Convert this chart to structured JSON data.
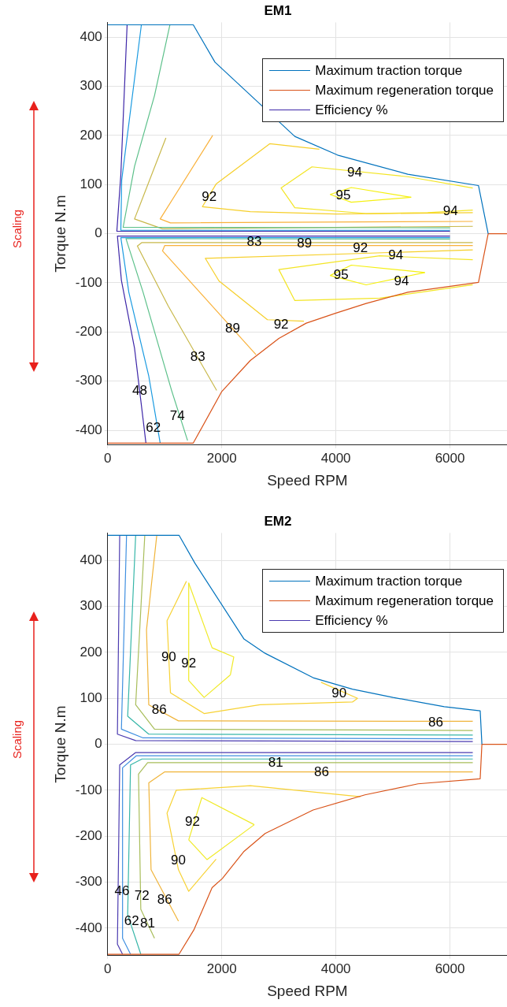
{
  "chart_data": [
    {
      "type": "line",
      "title": "EM1",
      "xlabel": "Speed RPM",
      "ylabel": "Torque N.m",
      "xlim": [
        0,
        7000
      ],
      "ylim": [
        -430,
        430
      ],
      "xticks": [
        0,
        2000,
        4000,
        6000
      ],
      "yticks": [
        -400,
        -300,
        -200,
        -100,
        0,
        100,
        200,
        300,
        400
      ],
      "grid": true,
      "legend": "top right",
      "marker": "none",
      "series": [
        {
          "name": "Maximum traction torque",
          "color": "#0072bd",
          "x": [
            0,
            1500,
            1880,
            3280,
            4030,
            5260,
            6500,
            6670
          ],
          "values": [
            425,
            425,
            349,
            198,
            160,
            121,
            98,
            0
          ]
        },
        {
          "name": "Maximum regeneration torque",
          "color": "#d95319",
          "x": [
            0,
            1500,
            2000,
            2500,
            3000,
            3480,
            3990,
            4530,
            5260,
            6500,
            6670,
            7000
          ],
          "values": [
            -426,
            -426,
            -321,
            -258,
            -213,
            -182,
            -162,
            -142,
            -119,
            -99,
            0,
            0
          ]
        },
        {
          "name": "Efficiency %",
          "color": "#3d26a8",
          "x": [
            340,
            230,
            160,
            6000
          ],
          "values": [
            425,
            120,
            5,
            5
          ]
        },
        {
          "color": "#3d26a8",
          "x": [
            6000,
            170,
            240,
            470,
            670
          ],
          "values": [
            -5,
            -5,
            -95,
            -233,
            -426
          ]
        },
        {
          "color": "#1a9ae0",
          "x": [
            590,
            245,
            230,
            6000
          ],
          "values": [
            425,
            109,
            7,
            7
          ]
        },
        {
          "color": "#1a9ae0",
          "x": [
            6000,
            230,
            370,
            720,
            920
          ],
          "values": [
            -8,
            -8,
            -119,
            -290,
            -426
          ]
        },
        {
          "color": "#5cc08a",
          "x": [
            1090,
            820,
            470,
            270,
            6000
          ],
          "values": [
            425,
            281,
            137,
            13,
            12
          ]
        },
        {
          "color": "#5cc08a",
          "x": [
            6000,
            320,
            620,
            1120,
            1400
          ],
          "values": [
            -11,
            -10,
            -119,
            -319,
            -421
          ]
        },
        {
          "color": "#c8b84a",
          "x": [
            1020,
            470,
            960,
            6400
          ],
          "values": [
            195,
            30,
            10,
            15
          ]
        },
        {
          "color": "#c8b84a",
          "x": [
            6400,
            600,
            520,
            1060,
            1910
          ],
          "values": [
            -18,
            -18,
            -25,
            -147,
            -319
          ]
        },
        {
          "color": "#f9b13a",
          "x": [
            1840,
            920,
            1100,
            6400
          ],
          "values": [
            200,
            30,
            22,
            25
          ]
        },
        {
          "color": "#f9b13a",
          "x": [
            6400,
            1000,
            960,
            2600
          ],
          "values": [
            -24,
            -24,
            -35,
            -246
          ]
        },
        {
          "color": "#f6cf2a",
          "x": [
            3710,
            2840,
            1900,
            1660,
            2500,
            4000,
            6400
          ],
          "values": [
            172,
            183,
            101,
            55,
            45,
            40,
            43
          ]
        },
        {
          "color": "#f6cf2a",
          "x": [
            6400,
            1710,
            1950,
            2800,
            3440
          ],
          "values": [
            -33,
            -50,
            -96,
            -175,
            -178
          ]
        },
        {
          "color": "#f3e524",
          "x": [
            6400,
            5260,
            3580,
            3040,
            3280,
            4530,
            5610,
            6400
          ],
          "values": [
            93,
            116,
            136,
            93,
            53,
            41,
            43,
            48
          ]
        },
        {
          "color": "#f3e524",
          "x": [
            6400,
            4770,
            3000,
            3280,
            4770,
            6400
          ],
          "values": [
            -53,
            -45,
            -73,
            -136,
            -131,
            -104
          ]
        },
        {
          "color": "#f5f010",
          "x": [
            3900,
            4270,
            5320
          ],
          "values": [
            80,
            94,
            74
          ]
        },
        {
          "color": "#f5f010",
          "x": [
            3900,
            4270,
            5320
          ],
          "values": [
            80,
            64,
            74
          ]
        },
        {
          "color": "#f5f010",
          "x": [
            3900,
            4270,
            5560
          ],
          "values": [
            -85,
            -64,
            -79
          ]
        },
        {
          "color": "#f5f010",
          "x": [
            3900,
            4530,
            5560
          ],
          "values": [
            -85,
            -104,
            -79
          ]
        }
      ],
      "annotations": [
        "Scaling",
        {
          "text": "94",
          "x": 4330,
          "y": 124
        },
        {
          "text": "95",
          "x": 4130,
          "y": 78
        },
        {
          "text": "92",
          "x": 1780,
          "y": 74
        },
        {
          "text": "94",
          "x": 6010,
          "y": 46
        },
        {
          "text": "83",
          "x": 2570,
          "y": -17
        },
        {
          "text": "89",
          "x": 3450,
          "y": -21
        },
        {
          "text": "92",
          "x": 4430,
          "y": -30
        },
        {
          "text": "94",
          "x": 5050,
          "y": -45
        },
        {
          "text": "95",
          "x": 4090,
          "y": -84
        },
        {
          "text": "94",
          "x": 5150,
          "y": -98
        },
        {
          "text": "92",
          "x": 3040,
          "y": -185
        },
        {
          "text": "89",
          "x": 2190,
          "y": -193
        },
        {
          "text": "83",
          "x": 1580,
          "y": -252
        },
        {
          "text": "74",
          "x": 1220,
          "y": -372
        },
        {
          "text": "62",
          "x": 800,
          "y": -395
        },
        {
          "text": "48",
          "x": 560,
          "y": -320
        }
      ]
    },
    {
      "type": "line",
      "title": "EM2",
      "xlabel": "Speed RPM",
      "ylabel": "Torque N.m",
      "xlim": [
        0,
        7000
      ],
      "ylim": [
        -460,
        460
      ],
      "xticks": [
        0,
        2000,
        4000,
        6000
      ],
      "yticks": [
        -400,
        -300,
        -200,
        -100,
        0,
        100,
        200,
        300,
        400
      ],
      "grid": true,
      "legend": "top right",
      "marker": "none",
      "series": [
        {
          "name": "Maximum traction torque",
          "color": "#0072bd",
          "x": [
            0,
            1250,
            1530,
            2390,
            2760,
            3600,
            4290,
            5000,
            5900,
            6530,
            6560
          ],
          "values": [
            455,
            455,
            394,
            229,
            198,
            145,
            120,
            102,
            82,
            73,
            0
          ]
        },
        {
          "name": "Maximum regeneration torque",
          "color": "#d95319",
          "x": [
            0,
            1250,
            1510,
            1830,
            2010,
            2390,
            2760,
            3600,
            4510,
            5440,
            6530,
            6560,
            7000
          ],
          "values": [
            -457,
            -457,
            -404,
            -312,
            -292,
            -233,
            -194,
            -143,
            -110,
            -86,
            -75,
            0,
            0
          ]
        },
        {
          "name": "Efficiency %",
          "color": "#4b3bb0",
          "x": [
            210,
            170,
            490,
            6400
          ],
          "values": [
            455,
            22,
            8,
            6
          ]
        },
        {
          "color": "#4b3bb0",
          "x": [
            6400,
            490,
            210,
            170,
            260
          ],
          "values": [
            -18,
            -18,
            -45,
            -435,
            -457
          ]
        },
        {
          "color": "#3f8fe0",
          "x": [
            330,
            240,
            620,
            6400
          ],
          "values": [
            455,
            33,
            14,
            12
          ]
        },
        {
          "color": "#3f8fe0",
          "x": [
            6400,
            500,
            260,
            260,
            400
          ],
          "values": [
            -25,
            -25,
            -51,
            -422,
            -457
          ]
        },
        {
          "color": "#36b6a8",
          "x": [
            490,
            350,
            720,
            6400
          ],
          "values": [
            455,
            61,
            22,
            20
          ]
        },
        {
          "color": "#36b6a8",
          "x": [
            6400,
            600,
            400,
            350,
            580
          ],
          "values": [
            -32,
            -32,
            -45,
            -371,
            -457
          ]
        },
        {
          "color": "#a8bd5a",
          "x": [
            650,
            490,
            820,
            6400
          ],
          "values": [
            455,
            86,
            33,
            30
          ]
        },
        {
          "color": "#a8bd5a",
          "x": [
            6400,
            700,
            540,
            580,
            820
          ],
          "values": [
            -40,
            -40,
            -65,
            -359,
            -422
          ]
        },
        {
          "color": "#f0b43a",
          "x": [
            860,
            680,
            720,
            1240,
            6400
          ],
          "values": [
            455,
            249,
            86,
            51,
            50
          ]
        },
        {
          "color": "#f0b43a",
          "x": [
            6400,
            1000,
            720,
            760,
            1240
          ],
          "values": [
            -60,
            -60,
            -84,
            -273,
            -385
          ]
        },
        {
          "color": "#f7d234",
          "x": [
            1380,
            1040,
            1100,
            1690,
            2670,
            4290,
            4380,
            3740
          ],
          "values": [
            355,
            269,
            112,
            67,
            86,
            92,
            100,
            135
          ]
        },
        {
          "color": "#f7d234",
          "x": [
            4430,
            2500,
            1200,
            1040,
            1240,
            1420,
            1900
          ],
          "values": [
            -114,
            -90,
            -100,
            -150,
            -273,
            -320,
            -250
          ]
        },
        {
          "color": "#f0ea28",
          "x": [
            1420,
            1830,
            2210,
            2150
          ],
          "values": [
            351,
            210,
            190,
            151
          ]
        },
        {
          "color": "#f0ea28",
          "x": [
            1420,
            1420,
            1690,
            2150
          ],
          "values": [
            351,
            139,
            102,
            151
          ]
        },
        {
          "color": "#f0ea28",
          "x": [
            1420,
            1650,
            2570
          ],
          "values": [
            -208,
            -116,
            -175
          ]
        },
        {
          "color": "#f0ea28",
          "x": [
            1420,
            1740,
            2570
          ],
          "values": [
            -208,
            -251,
            -175
          ]
        }
      ],
      "annotations": [
        "Scaling",
        {
          "text": "90",
          "x": 1070,
          "y": 190
        },
        {
          "text": "92",
          "x": 1420,
          "y": 175
        },
        {
          "text": "90",
          "x": 4056,
          "y": 110
        },
        {
          "text": "86",
          "x": 5750,
          "y": 47
        },
        {
          "text": "86",
          "x": 903,
          "y": 74
        },
        {
          "text": "86",
          "x": 3750,
          "y": -61
        },
        {
          "text": "81",
          "x": 2944,
          "y": -41
        },
        {
          "text": "92",
          "x": 1486,
          "y": -169
        },
        {
          "text": "90",
          "x": 1236,
          "y": -253
        },
        {
          "text": "86",
          "x": 1000,
          "y": -339
        },
        {
          "text": "81",
          "x": 700,
          "y": -390
        },
        {
          "text": "72",
          "x": 600,
          "y": -330
        },
        {
          "text": "62",
          "x": 420,
          "y": -385
        },
        {
          "text": "46",
          "x": 250,
          "y": -320
        }
      ]
    }
  ]
}
